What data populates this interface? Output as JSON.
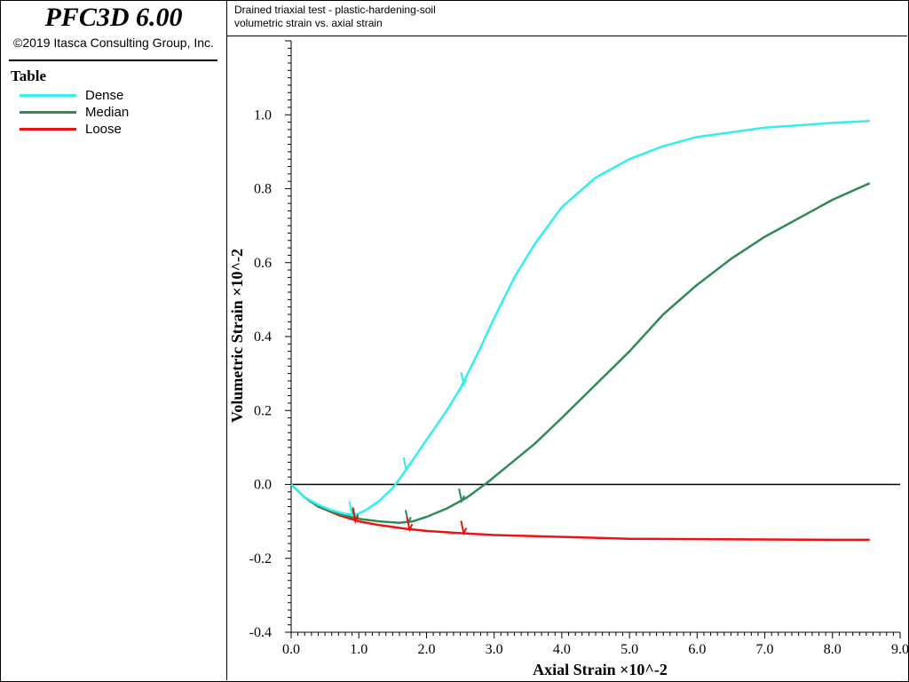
{
  "app": {
    "title": "PFC3D 6.00",
    "copyright": "©2019 Itasca Consulting Group, Inc."
  },
  "legend": {
    "title": "Table",
    "items": [
      {
        "label": "Dense",
        "color": "#33eeee"
      },
      {
        "label": "Median",
        "color": "#2e8b57"
      },
      {
        "label": "Loose",
        "color": "#ee1111"
      }
    ]
  },
  "chart_data": {
    "type": "line",
    "title": "Drained triaxial test - plastic-hardening-soil",
    "subtitle": "volumetric strain vs. axial strain",
    "xlabel": "Axial Strain ×10^-2",
    "ylabel": "Volumetric Strain ×10^-2",
    "xlim": [
      0.0,
      9.0
    ],
    "ylim": [
      -0.4,
      1.2
    ],
    "xticks": [
      "0.0",
      "1.0",
      "2.0",
      "3.0",
      "4.0",
      "5.0",
      "6.0",
      "7.0",
      "8.0",
      "9.0"
    ],
    "yticks": [
      {
        "value": -0.4,
        "label": "-0.4"
      },
      {
        "value": -0.2,
        "label": "-0.2"
      },
      {
        "value": 0.0,
        "label": "0.0"
      },
      {
        "value": 0.2,
        "label": "0.2"
      },
      {
        "value": 0.4,
        "label": "0.4"
      },
      {
        "value": 0.6,
        "label": "0.6"
      },
      {
        "value": 0.8,
        "label": "0.8"
      },
      {
        "value": 1.0,
        "label": "1.0"
      }
    ],
    "zero_line": 0.0,
    "grid": false,
    "legend_position": "left-panel",
    "series": [
      {
        "name": "Dense",
        "color": "#33eeee",
        "points": [
          [
            0.0,
            0.0
          ],
          [
            0.2,
            -0.035
          ],
          [
            0.4,
            -0.055
          ],
          [
            0.6,
            -0.07
          ],
          [
            0.8,
            -0.08
          ],
          [
            0.95,
            -0.082
          ],
          [
            1.1,
            -0.07
          ],
          [
            1.3,
            -0.045
          ],
          [
            1.5,
            -0.01
          ],
          [
            1.7,
            0.04
          ],
          [
            2.0,
            0.12
          ],
          [
            2.3,
            0.2
          ],
          [
            2.5,
            0.26
          ],
          [
            2.8,
            0.37
          ],
          [
            3.0,
            0.45
          ],
          [
            3.3,
            0.56
          ],
          [
            3.6,
            0.65
          ],
          [
            4.0,
            0.75
          ],
          [
            4.5,
            0.83
          ],
          [
            5.0,
            0.88
          ],
          [
            5.5,
            0.915
          ],
          [
            6.0,
            0.94
          ],
          [
            7.0,
            0.965
          ],
          [
            8.0,
            0.978
          ],
          [
            8.55,
            0.983
          ]
        ]
      },
      {
        "name": "Median",
        "color": "#2e8b57",
        "points": [
          [
            0.0,
            0.0
          ],
          [
            0.2,
            -0.035
          ],
          [
            0.4,
            -0.06
          ],
          [
            0.7,
            -0.08
          ],
          [
            1.0,
            -0.093
          ],
          [
            1.3,
            -0.1
          ],
          [
            1.6,
            -0.104
          ],
          [
            1.8,
            -0.1
          ],
          [
            2.0,
            -0.088
          ],
          [
            2.3,
            -0.065
          ],
          [
            2.6,
            -0.035
          ],
          [
            2.9,
            0.005
          ],
          [
            3.2,
            0.05
          ],
          [
            3.6,
            0.11
          ],
          [
            4.0,
            0.18
          ],
          [
            4.5,
            0.27
          ],
          [
            5.0,
            0.36
          ],
          [
            5.5,
            0.46
          ],
          [
            6.0,
            0.54
          ],
          [
            6.5,
            0.61
          ],
          [
            7.0,
            0.67
          ],
          [
            7.5,
            0.72
          ],
          [
            8.0,
            0.77
          ],
          [
            8.55,
            0.815
          ]
        ]
      },
      {
        "name": "Loose",
        "color": "#ee1111",
        "points": [
          [
            0.0,
            0.0
          ],
          [
            0.2,
            -0.035
          ],
          [
            0.4,
            -0.06
          ],
          [
            0.7,
            -0.083
          ],
          [
            1.0,
            -0.1
          ],
          [
            1.3,
            -0.11
          ],
          [
            1.7,
            -0.12
          ],
          [
            2.0,
            -0.126
          ],
          [
            2.5,
            -0.132
          ],
          [
            3.0,
            -0.137
          ],
          [
            4.0,
            -0.142
          ],
          [
            5.0,
            -0.147
          ],
          [
            6.0,
            -0.148
          ],
          [
            7.0,
            -0.149
          ],
          [
            8.0,
            -0.15
          ],
          [
            8.55,
            -0.15
          ]
        ]
      }
    ],
    "annotations": [
      {
        "series": "Dense",
        "x": 0.9,
        "y": -0.08,
        "dir": "up"
      },
      {
        "series": "Dense",
        "x": 1.7,
        "y": 0.04,
        "dir": "up"
      },
      {
        "series": "Dense",
        "x": 2.55,
        "y": 0.27,
        "dir": "up"
      },
      {
        "series": "Median",
        "x": 0.95,
        "y": -0.095,
        "dir": "up"
      },
      {
        "series": "Median",
        "x": 1.73,
        "y": -0.103,
        "dir": "up"
      },
      {
        "series": "Median",
        "x": 2.52,
        "y": -0.045,
        "dir": "up"
      },
      {
        "series": "Loose",
        "x": 0.95,
        "y": -0.1,
        "dir": "up"
      },
      {
        "series": "Loose",
        "x": 1.75,
        "y": -0.122,
        "dir": "up"
      },
      {
        "series": "Loose",
        "x": 2.55,
        "y": -0.132,
        "dir": "up"
      }
    ]
  }
}
